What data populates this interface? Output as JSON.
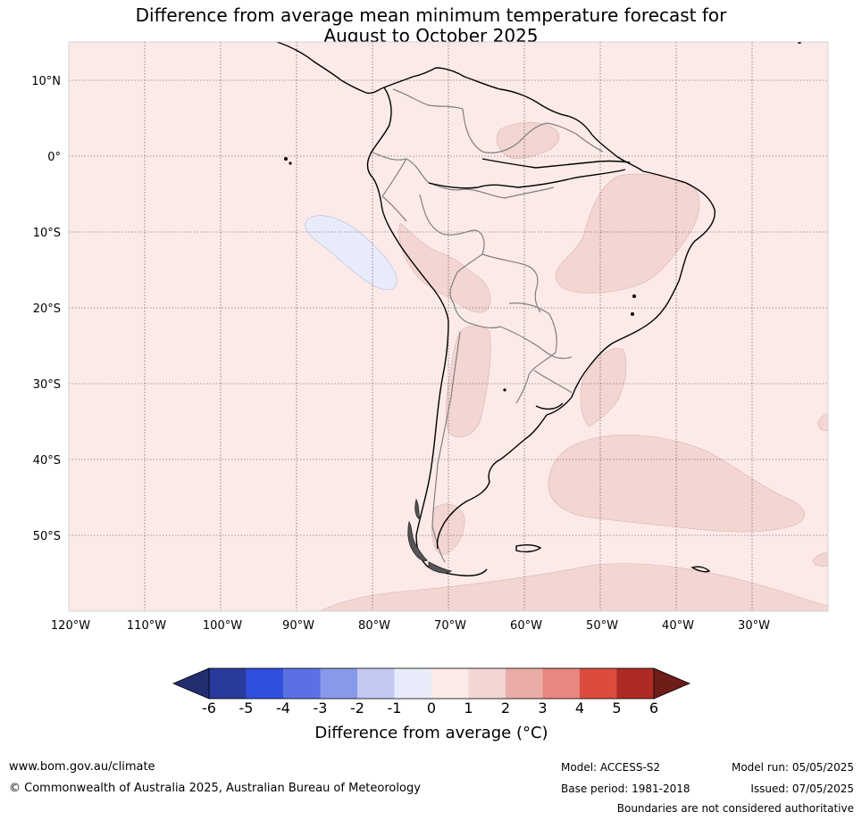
{
  "title": {
    "line1": "Difference from average mean minimum temperature forecast for",
    "line2": "August to October 2025"
  },
  "map": {
    "lat_labels": [
      "10°N",
      "0°",
      "10°S",
      "20°S",
      "30°S",
      "40°S",
      "50°S"
    ],
    "lon_labels": [
      "120°W",
      "110°W",
      "100°W",
      "90°W",
      "80°W",
      "70°W",
      "60°W",
      "50°W",
      "40°W",
      "30°W"
    ],
    "extent": {
      "lon": [
        -120,
        -20
      ],
      "lat": [
        -60,
        15
      ]
    },
    "background_category": "0 to 1",
    "colors": {
      "0_to_1": "#fbeae8",
      "1_to_2": "#f3d5d2",
      "-1_to_0": "#e8ecfa"
    }
  },
  "colorbar": {
    "ticks": [
      "-6",
      "-5",
      "-4",
      "-3",
      "-2",
      "-1",
      "0",
      "1",
      "2",
      "3",
      "4",
      "5",
      "6"
    ],
    "label": "Difference from average (°C)",
    "colors": [
      "#283a9c",
      "#2f4fdc",
      "#5b71e3",
      "#8899ea",
      "#c3c9f3",
      "#e8ecfa",
      "#fbeae8",
      "#f3d5d2",
      "#ebaca7",
      "#e78780",
      "#dd4b3f",
      "#ad2b22"
    ],
    "under_color": "#232e70",
    "over_color": "#6e1c18"
  },
  "footer": {
    "url": "www.bom.gov.au/climate",
    "copyright": "© Commonwealth of Australia 2025, Australian Bureau of Meteorology",
    "model": "Model: ACCESS-S2",
    "base_period": "Base period: 1981-2018",
    "model_run": "Model run: 05/05/2025",
    "issued": "Issued: 07/05/2025",
    "disclaimer": "Boundaries are not considered authoritative"
  }
}
